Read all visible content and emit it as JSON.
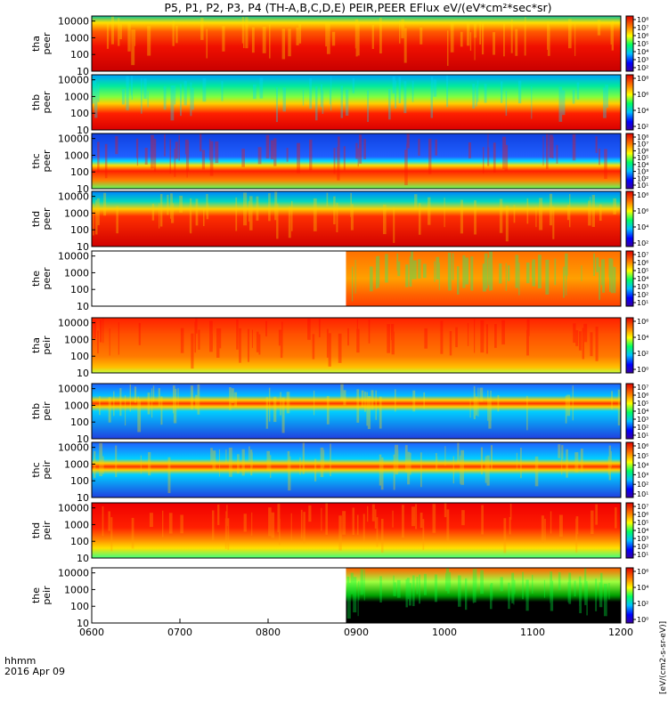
{
  "title": "P5, P1, P2, P3, P4 (TH-A,B,C,D,E) PEIR,PEER EFlux eV/(eV*cm²*sec*sr)",
  "corner_label": "hhmm",
  "date_label": "2016 Apr 09",
  "xaxis": {
    "range": [
      "0600",
      "1200"
    ],
    "ticks": [
      "0600",
      "0700",
      "0800",
      "0900",
      "1000",
      "1100",
      "1200"
    ]
  },
  "colorbar_label": "[eV/(cm2-s-sr-eV)]",
  "colors": {
    "background": "#ffffff",
    "missing_data": "#ffffff",
    "saturated": "#000000"
  },
  "chart_data": [
    {
      "type": "heatmap",
      "probe": "tha",
      "species": "peer",
      "ylabel": [
        "tha",
        "peer"
      ],
      "yticks": [
        "10000",
        "1000",
        "100",
        "10"
      ],
      "ylim": [
        10,
        20000
      ],
      "yscale": "log",
      "colorbar": {
        "scale": "log",
        "ticks": [
          "10⁸",
          "10⁷",
          "10⁶",
          "10⁵",
          "10⁴",
          "10³",
          "10²"
        ]
      },
      "data_start_hhmm": "0600",
      "peak_band": "low-energy (10-300 eV) red/orange",
      "dominant_color": "red"
    },
    {
      "type": "heatmap",
      "probe": "thb",
      "species": "peer",
      "ylabel": [
        "thb",
        "peer"
      ],
      "yticks": [
        "10000",
        "1000",
        "100",
        "10"
      ],
      "ylim": [
        10,
        20000
      ],
      "yscale": "log",
      "colorbar": {
        "scale": "log",
        "ticks": [
          "10⁸",
          "10⁶",
          "10⁴",
          "10²"
        ]
      },
      "data_start_hhmm": "0600",
      "peak_band": "low-energy red band, green above 1000 eV",
      "dominant_color": "red/green"
    },
    {
      "type": "heatmap",
      "probe": "thc",
      "species": "peer",
      "ylabel": [
        "thc",
        "peer"
      ],
      "yticks": [
        "10000",
        "1000",
        "100",
        "10"
      ],
      "ylim": [
        10,
        20000
      ],
      "yscale": "log",
      "colorbar": {
        "scale": "log",
        "ticks": [
          "10⁸",
          "10⁷",
          "10⁶",
          "10⁵",
          "10⁴",
          "10³",
          "10²",
          "10¹"
        ]
      },
      "data_start_hhmm": "0600",
      "peak_band": "narrow band near 100 eV, noisy blue above",
      "dominant_color": "blue"
    },
    {
      "type": "heatmap",
      "probe": "thd",
      "species": "peer",
      "ylabel": [
        "thd",
        "peer"
      ],
      "yticks": [
        "10000",
        "1000",
        "100",
        "10"
      ],
      "ylim": [
        10,
        20000
      ],
      "yscale": "log",
      "colorbar": {
        "scale": "log",
        "ticks": [
          "10⁸",
          "10⁶",
          "10⁴",
          "10²"
        ]
      },
      "data_start_hhmm": "0600",
      "peak_band": "red below 300 eV",
      "dominant_color": "red"
    },
    {
      "type": "heatmap",
      "probe": "the",
      "species": "peer",
      "ylabel": [
        "the",
        "peer"
      ],
      "yticks": [
        "10000",
        "1000",
        "100",
        "10"
      ],
      "ylim": [
        10,
        20000
      ],
      "yscale": "log",
      "colorbar": {
        "scale": "log",
        "ticks": [
          "10⁷",
          "10⁶",
          "10⁵",
          "10⁴",
          "10³",
          "10²",
          "10¹"
        ]
      },
      "data_start_hhmm": "0853",
      "peak_band": "smooth orange/yellow",
      "dominant_color": "orange"
    },
    {
      "type": "heatmap",
      "probe": "tha",
      "species": "peir",
      "ylabel": [
        "tha",
        "peir"
      ],
      "yticks": [
        "10000",
        "1000",
        "100",
        "10"
      ],
      "ylim": [
        10,
        20000
      ],
      "yscale": "log",
      "colorbar": {
        "scale": "log",
        "ticks": [
          "10⁶",
          "10⁴",
          "10²",
          "10⁰"
        ]
      },
      "data_start_hhmm": "0600",
      "peak_band": "broad orange with red bursts",
      "dominant_color": "orange"
    },
    {
      "type": "heatmap",
      "probe": "thb",
      "species": "peir",
      "ylabel": [
        "thb",
        "peir"
      ],
      "yticks": [
        "10000",
        "1000",
        "100",
        "10"
      ],
      "ylim": [
        10,
        20000
      ],
      "yscale": "log",
      "colorbar": {
        "scale": "log",
        "ticks": [
          "10⁷",
          "10⁶",
          "10⁵",
          "10⁴",
          "10³",
          "10²",
          "10¹"
        ]
      },
      "data_start_hhmm": "0600",
      "peak_band": "narrow band near 1000 eV",
      "dominant_color": "blue"
    },
    {
      "type": "heatmap",
      "probe": "thc",
      "species": "peir",
      "ylabel": [
        "thc",
        "peir"
      ],
      "yticks": [
        "10000",
        "1000",
        "100",
        "10"
      ],
      "ylim": [
        10,
        20000
      ],
      "yscale": "log",
      "colorbar": {
        "scale": "log",
        "ticks": [
          "10⁶",
          "10⁵",
          "10⁴",
          "10³",
          "10²",
          "10¹"
        ]
      },
      "data_start_hhmm": "0600",
      "peak_band": "narrow band near 1000 eV",
      "dominant_color": "blue"
    },
    {
      "type": "heatmap",
      "probe": "thd",
      "species": "peir",
      "ylabel": [
        "thd",
        "peir"
      ],
      "yticks": [
        "10000",
        "1000",
        "100",
        "10"
      ],
      "ylim": [
        10,
        20000
      ],
      "yscale": "log",
      "colorbar": {
        "scale": "log",
        "ticks": [
          "10⁷",
          "10⁶",
          "10⁵",
          "10⁴",
          "10³",
          "10²",
          "10¹"
        ]
      },
      "data_start_hhmm": "0600",
      "peak_band": "red above 300 eV",
      "dominant_color": "red"
    },
    {
      "type": "heatmap",
      "probe": "the",
      "species": "peir",
      "ylabel": [
        "the",
        "peir"
      ],
      "yticks": [
        "10000",
        "1000",
        "100",
        "10"
      ],
      "ylim": [
        10,
        20000
      ],
      "yscale": "log",
      "colorbar": {
        "scale": "log",
        "ticks": [
          "10⁶",
          "10⁴",
          "10²",
          "10⁰"
        ]
      },
      "data_start_hhmm": "0853",
      "peak_band": "sparse, black low energies",
      "dominant_color": "black/green"
    }
  ]
}
